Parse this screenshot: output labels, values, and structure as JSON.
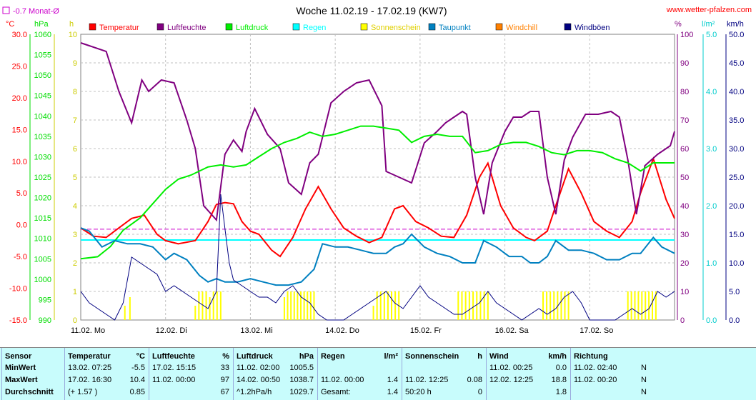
{
  "header": {
    "title": "Woche 11.02.19 - 17.02.19 (KW7)",
    "site": "www.wetter-pfalzen.com",
    "month_avg_label": "-0.7 Monat-Ø"
  },
  "legend": [
    {
      "name": "Temperatur",
      "color": "#ff0000"
    },
    {
      "name": "Luftfeuchte",
      "color": "#800080"
    },
    {
      "name": "Luftdruck",
      "color": "#00ee00"
    },
    {
      "name": "Regen",
      "color": "#00ffff"
    },
    {
      "name": "Sonnenschein",
      "color": "#ffff00"
    },
    {
      "name": "Taupunkt",
      "color": "#0080c0"
    },
    {
      "name": "Windchill",
      "color": "#ff8000"
    },
    {
      "name": "Windböen",
      "color": "#000080"
    }
  ],
  "chart_data": {
    "type": "line",
    "x_categories": [
      "11.02. Mo",
      "12.02. Di",
      "13.02. Mi",
      "14.02. Do",
      "15.02. Fr",
      "16.02. Sa",
      "17.02. So"
    ],
    "axes": {
      "temp": {
        "unit": "°C",
        "min": -15,
        "max": 30,
        "ticks": [
          "30.0",
          "25.0",
          "20.0",
          "15.0",
          "10.0",
          "5.0",
          "0.0",
          "-5.0",
          "-10.0",
          "-15.0"
        ],
        "color": "#ff0000"
      },
      "pressure": {
        "unit": "hPa",
        "min": 990,
        "max": 1060,
        "ticks": [
          "1060",
          "1055",
          "1050",
          "1045",
          "1040",
          "1035",
          "1030",
          "1025",
          "1020",
          "1015",
          "1010",
          "1005",
          "1000",
          "995",
          "990"
        ],
        "color": "#00dd00"
      },
      "sun": {
        "unit": "h",
        "min": 0,
        "max": 10,
        "ticks": [
          "10",
          "9",
          "8",
          "7",
          "6",
          "5",
          "4",
          "3",
          "2",
          "1",
          "0"
        ],
        "color": "#cccc00"
      },
      "humidity": {
        "unit": "%",
        "min": 0,
        "max": 100,
        "ticks": [
          "100",
          "90",
          "80",
          "70",
          "60",
          "50",
          "40",
          "30",
          "20",
          "10",
          "0"
        ],
        "color": "#800080"
      },
      "rain": {
        "unit": "l/m²",
        "min": 0,
        "max": 5,
        "ticks": [
          "5.0",
          "4.0",
          "3.0",
          "2.0",
          "1.0",
          "0.0"
        ],
        "color": "#00cccc"
      },
      "wind": {
        "unit": "km/h",
        "min": 0,
        "max": 50,
        "ticks": [
          "50.0",
          "45.0",
          "40.0",
          "35.0",
          "30.0",
          "25.0",
          "20.0",
          "15.0",
          "10.0",
          "5.0",
          "0.0"
        ],
        "color": "#000080"
      }
    },
    "month_avg_temp": -0.7,
    "rain_line": 1.4,
    "series": [
      {
        "name": "Temperatur",
        "axis": "temp",
        "color": "#ff0000",
        "x": [
          0,
          0.15,
          0.3,
          0.45,
          0.6,
          0.75,
          0.9,
          1.0,
          1.15,
          1.35,
          1.5,
          1.6,
          1.7,
          1.8,
          1.9,
          2.0,
          2.1,
          2.25,
          2.35,
          2.5,
          2.65,
          2.8,
          2.95,
          3.1,
          3.25,
          3.4,
          3.55,
          3.7,
          3.8,
          3.95,
          4.1,
          4.25,
          4.4,
          4.55,
          4.7,
          4.8,
          4.95,
          5.1,
          5.25,
          5.35,
          5.5,
          5.6,
          5.75,
          5.9,
          6.05,
          6.2,
          6.35,
          6.5,
          6.6,
          6.75,
          6.9,
          7.0
        ],
        "y": [
          -0.5,
          -1.8,
          -2.0,
          -0.5,
          1.0,
          1.5,
          -1.5,
          -2.5,
          -3.0,
          -2.5,
          0.5,
          3.2,
          3.5,
          3.3,
          0.5,
          -1.0,
          -1.5,
          -4.0,
          -5.0,
          -2.0,
          2.5,
          6.0,
          2.5,
          -0.5,
          -1.8,
          -2.8,
          -2.0,
          2.5,
          3.0,
          0.5,
          -0.5,
          -1.8,
          -2.0,
          1.5,
          7.5,
          9.7,
          3.0,
          -0.5,
          -2.0,
          -2.5,
          -1.0,
          3.0,
          8.8,
          5.0,
          0.5,
          -1.0,
          -2.0,
          0.5,
          5.0,
          10.4,
          4.0,
          1.0
        ]
      },
      {
        "name": "Luftfeuchte",
        "axis": "humidity",
        "color": "#800080",
        "x": [
          0,
          0.1,
          0.3,
          0.45,
          0.6,
          0.72,
          0.8,
          0.95,
          1.1,
          1.25,
          1.35,
          1.45,
          1.6,
          1.7,
          1.8,
          1.9,
          1.95,
          2.05,
          2.2,
          2.35,
          2.45,
          2.6,
          2.7,
          2.8,
          2.95,
          3.1,
          3.25,
          3.4,
          3.55,
          3.6,
          3.75,
          3.9,
          4.05,
          4.2,
          4.3,
          4.4,
          4.5,
          4.55,
          4.65,
          4.75,
          4.85,
          5.0,
          5.1,
          5.2,
          5.3,
          5.4,
          5.5,
          5.6,
          5.7,
          5.8,
          5.95,
          6.1,
          6.25,
          6.35,
          6.45,
          6.55,
          6.65,
          6.8,
          6.95,
          7.0
        ],
        "y": [
          97,
          96,
          94,
          80,
          69,
          84,
          80,
          84,
          83,
          70,
          60,
          40,
          35,
          58,
          63,
          59,
          66,
          74,
          65,
          60,
          48,
          44,
          55,
          58,
          76,
          80,
          83,
          84,
          75,
          52,
          50,
          48,
          62,
          66,
          69,
          71,
          73,
          72,
          50,
          37,
          55,
          66,
          71,
          71,
          73,
          73,
          50,
          37,
          56,
          64,
          72,
          72,
          73,
          71,
          56,
          37,
          54,
          58,
          61,
          66
        ]
      },
      {
        "name": "Luftdruck",
        "axis": "pressure",
        "color": "#00ee00",
        "x": [
          0,
          0.2,
          0.35,
          0.5,
          0.7,
          0.85,
          1.0,
          1.15,
          1.3,
          1.5,
          1.65,
          1.8,
          1.95,
          2.1,
          2.25,
          2.4,
          2.55,
          2.7,
          2.85,
          3.0,
          3.15,
          3.3,
          3.45,
          3.6,
          3.75,
          3.9,
          4.05,
          4.2,
          4.35,
          4.5,
          4.65,
          4.8,
          4.95,
          5.1,
          5.25,
          5.4,
          5.55,
          5.7,
          5.85,
          6.0,
          6.15,
          6.3,
          6.45,
          6.6,
          6.75,
          6.9,
          7.0
        ],
        "y": [
          1005,
          1005.5,
          1008,
          1012,
          1015,
          1018.5,
          1022,
          1024.5,
          1025.5,
          1027.5,
          1028,
          1027.5,
          1028,
          1030,
          1032,
          1033.5,
          1034.5,
          1036,
          1035,
          1035.5,
          1036.5,
          1037.5,
          1037.5,
          1037,
          1036.5,
          1033.5,
          1035,
          1035.5,
          1035,
          1035,
          1031,
          1031.5,
          1033,
          1033.5,
          1033.5,
          1032.5,
          1031,
          1030.5,
          1031.5,
          1031.5,
          1031,
          1029.5,
          1028.5,
          1026.5,
          1028.5,
          1028.5,
          1028.5
        ]
      },
      {
        "name": "Taupunkt",
        "axis": "temp",
        "color": "#0080c0",
        "x": [
          0,
          0.1,
          0.25,
          0.4,
          0.55,
          0.7,
          0.85,
          1.0,
          1.1,
          1.25,
          1.4,
          1.5,
          1.6,
          1.7,
          1.85,
          2.0,
          2.15,
          2.3,
          2.45,
          2.6,
          2.75,
          2.85,
          3.0,
          3.15,
          3.3,
          3.45,
          3.6,
          3.7,
          3.8,
          3.9,
          4.05,
          4.2,
          4.35,
          4.5,
          4.6,
          4.65,
          4.75,
          4.9,
          5.05,
          5.2,
          5.3,
          5.4,
          5.5,
          5.6,
          5.75,
          5.9,
          6.05,
          6.2,
          6.35,
          6.5,
          6.6,
          6.75,
          6.85,
          7.0
        ],
        "y": [
          -0.5,
          -1.0,
          -3.5,
          -2.5,
          -3.0,
          -3.0,
          -3.5,
          -5.5,
          -4.5,
          -5.5,
          -8.0,
          -9.0,
          -8.5,
          -9.0,
          -9.0,
          -8.5,
          -9.0,
          -9.5,
          -9.5,
          -9.0,
          -7.0,
          -3.0,
          -3.5,
          -3.5,
          -4.0,
          -4.5,
          -4.5,
          -3.5,
          -3.0,
          -1.5,
          -3.5,
          -4.5,
          -5.0,
          -6.0,
          -6.0,
          -6.0,
          -2.5,
          -3.5,
          -5.0,
          -5.0,
          -6.0,
          -6.0,
          -5.0,
          -2.5,
          -4.0,
          -4.0,
          -4.5,
          -5.5,
          -5.5,
          -4.5,
          -4.5,
          -2.0,
          -3.5,
          -4.5
        ]
      },
      {
        "name": "Windböen",
        "axis": "wind",
        "color": "#000080",
        "x": [
          0,
          0.1,
          0.2,
          0.3,
          0.4,
          0.5,
          0.6,
          0.7,
          0.8,
          0.9,
          1.0,
          1.1,
          1.2,
          1.3,
          1.4,
          1.5,
          1.6,
          1.65,
          1.7,
          1.75,
          1.8,
          1.9,
          2.0,
          2.1,
          2.2,
          2.3,
          2.4,
          2.5,
          2.6,
          2.7,
          2.8,
          2.9,
          3.0,
          3.1,
          3.2,
          3.3,
          3.4,
          3.5,
          3.6,
          3.7,
          3.8,
          3.9,
          4.0,
          4.1,
          4.2,
          4.3,
          4.4,
          4.5,
          4.6,
          4.7,
          4.8,
          4.9,
          5.0,
          5.1,
          5.2,
          5.3,
          5.4,
          5.5,
          5.6,
          5.7,
          5.8,
          5.9,
          6.0,
          6.1,
          6.2,
          6.3,
          6.4,
          6.5,
          6.6,
          6.7,
          6.8,
          6.9,
          7.0
        ],
        "y": [
          5,
          3,
          2,
          1,
          0,
          3,
          11,
          10,
          9,
          8,
          5,
          6,
          5,
          4,
          3,
          2,
          5,
          22,
          16,
          10,
          7,
          6,
          5,
          4,
          4,
          3,
          5,
          6,
          4,
          3,
          1,
          0,
          0,
          0,
          1,
          2,
          3,
          4,
          5,
          3,
          2,
          4,
          6,
          4,
          3,
          2,
          1,
          1,
          2,
          3,
          5,
          3,
          2,
          1,
          0,
          1,
          2,
          1,
          2,
          4,
          5,
          3,
          0,
          0,
          0,
          0,
          1,
          2,
          1,
          2,
          5,
          4,
          5
        ]
      }
    ],
    "sunshine_bars": [
      {
        "day": 0,
        "start": 0.52,
        "end": 0.58,
        "values": [
          0.5,
          0.8
        ]
      },
      {
        "day": 1,
        "start": 1.35,
        "end": 1.65,
        "values": [
          0.5,
          1.0,
          1.0,
          1.0,
          0.8,
          1.0,
          1.0,
          1.0
        ]
      },
      {
        "day": 2,
        "start": 2.4,
        "end": 2.75,
        "values": [
          0.8,
          1.0,
          1.0,
          1.0,
          1.0,
          1.0,
          1.0,
          1.0,
          1.0,
          1.0
        ]
      },
      {
        "day": 3,
        "start": 3.45,
        "end": 3.75,
        "values": [
          0.5,
          1.0,
          1.0,
          1.0,
          1.0,
          1.0,
          1.0,
          1.0
        ]
      },
      {
        "day": 4,
        "start": 4.45,
        "end": 4.8,
        "values": [
          1.0,
          1.0,
          1.0,
          1.0,
          1.0,
          1.0,
          1.0,
          1.0,
          1.0
        ]
      },
      {
        "day": 5,
        "start": 5.45,
        "end": 5.75,
        "values": [
          1.0,
          1.0,
          1.0,
          1.0,
          1.0,
          1.0,
          1.0,
          1.0
        ]
      },
      {
        "day": 6,
        "start": 6.45,
        "end": 6.78,
        "values": [
          1.0,
          1.0,
          1.0,
          1.0,
          1.0,
          1.0,
          1.0,
          1.0,
          1.0
        ]
      }
    ]
  },
  "table": {
    "columns": [
      {
        "key": "sensor",
        "title": "Sensor",
        "unit": "",
        "rows": [
          "MinWert",
          "MaxWert",
          "Durchschnitt"
        ]
      },
      {
        "key": "temp",
        "title": "Temperatur",
        "unit": "°C",
        "rows": [
          [
            "13.02.  07:25",
            "-5.5"
          ],
          [
            "17.02.  16:30",
            "10.4"
          ],
          [
            "(+ 1.57 )",
            "0.85"
          ]
        ]
      },
      {
        "key": "hum",
        "title": "Luftfeuchte",
        "unit": "%",
        "rows": [
          [
            "17.02.  15:15",
            "33"
          ],
          [
            "11.02.  00:00",
            "97"
          ],
          [
            "",
            "67"
          ]
        ]
      },
      {
        "key": "press",
        "title": "Luftdruck",
        "unit": "hPa",
        "rows": [
          [
            "11.02.  02:00",
            "1005.5"
          ],
          [
            "14.02.  00:50",
            "1038.7"
          ],
          [
            "^1.2hPa/h",
            "1029.7"
          ]
        ]
      },
      {
        "key": "rain",
        "title": "Regen",
        "unit": "l/m²",
        "rows": [
          [
            "",
            ""
          ],
          [
            "11.02.  00:00",
            "1.4"
          ],
          [
            "Gesamt:",
            "1.4"
          ]
        ]
      },
      {
        "key": "sun",
        "title": "Sonnenschein",
        "unit": "h",
        "rows": [
          [
            "",
            ""
          ],
          [
            "11.02.  12:25",
            "0.08"
          ],
          [
            "50:20 h",
            "0"
          ]
        ]
      },
      {
        "key": "wind",
        "title": "Wind",
        "unit": "km/h",
        "rows": [
          [
            "11.02.  00:25",
            "0.0"
          ],
          [
            "12.02.  12:25",
            "18.8"
          ],
          [
            "",
            "1.8"
          ]
        ]
      },
      {
        "key": "dir",
        "title": "Richtung",
        "unit": "",
        "rows": [
          [
            "11.02.  02:40",
            "N"
          ],
          [
            "11.02.  00:20",
            "N"
          ],
          [
            "",
            "N"
          ]
        ]
      }
    ]
  }
}
